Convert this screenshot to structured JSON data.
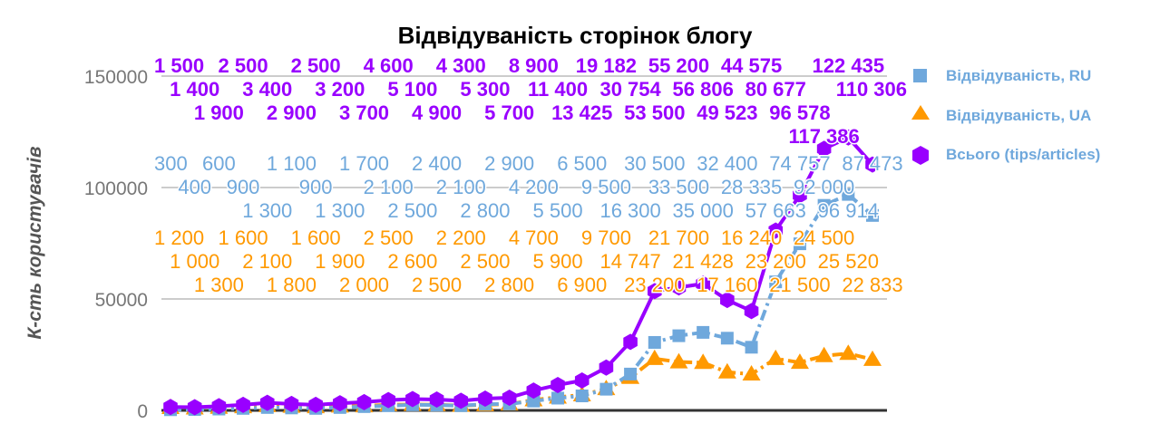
{
  "chart_data": {
    "type": "line",
    "title": "Відвідуваність сторінок блогу",
    "xlabel": "",
    "ylabel": "К-сть користувачів",
    "ylim": [
      0,
      150000
    ],
    "yticks": [
      0,
      50000,
      100000,
      150000
    ],
    "yticks_labels": [
      "0",
      "50000",
      "100000",
      "150000"
    ],
    "grid": true,
    "legend_position": "right",
    "series": [
      {
        "name": "Відвідуваність, RU",
        "color": "#6fa8dc",
        "marker": "square",
        "values": [
          300,
          400,
          600,
          900,
          1300,
          1100,
          900,
          1300,
          1700,
          2100,
          2500,
          2400,
          2100,
          2800,
          2900,
          4200,
          5500,
          6500,
          9500,
          16300,
          30500,
          33500,
          35000,
          32400,
          28335,
          57663,
          74757,
          92000,
          96914,
          87473
        ]
      },
      {
        "name": "Відвідуваність, UA",
        "color": "#ff9900",
        "marker": "triangle",
        "values": [
          1200,
          1000,
          1300,
          1600,
          2100,
          1800,
          1600,
          1900,
          2000,
          2500,
          2600,
          2500,
          2200,
          2500,
          2800,
          4700,
          5900,
          6900,
          9700,
          14747,
          23200,
          21700,
          21428,
          17160,
          16240,
          23200,
          21500,
          24500,
          25520,
          22833
        ]
      },
      {
        "name": "Всього (tips/articles)",
        "color": "#9900ff",
        "marker": "hexagon",
        "values": [
          1500,
          1400,
          1900,
          2500,
          3400,
          2900,
          2500,
          3200,
          3700,
          4600,
          5100,
          4900,
          4300,
          5300,
          5700,
          8900,
          11400,
          13425,
          19182,
          30754,
          53500,
          55200,
          56806,
          49523,
          44575,
          80677,
          96578,
          117386,
          122435,
          110306
        ]
      }
    ]
  }
}
